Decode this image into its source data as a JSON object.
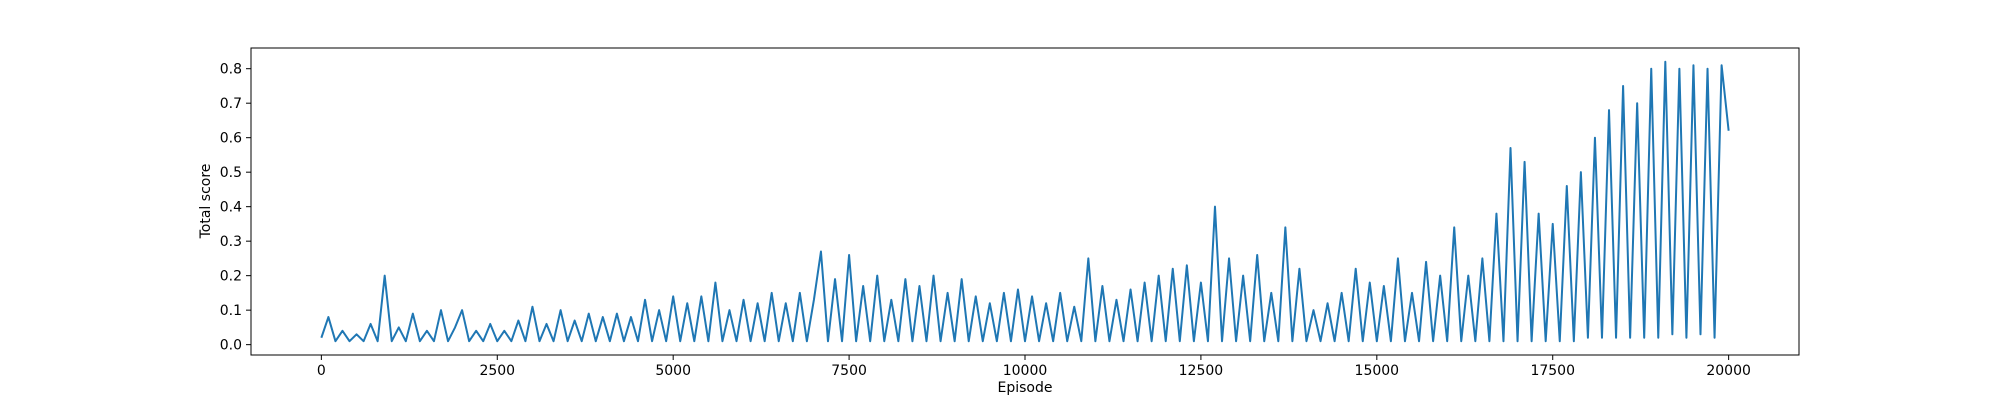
{
  "chart_data": {
    "type": "line",
    "x_label": "Episode",
    "y_label": "Total score",
    "color": "#1f77b4",
    "xlim": [
      -1000,
      21000
    ],
    "ylim": [
      -0.03,
      0.86
    ],
    "xticks": [
      0,
      2500,
      5000,
      7500,
      10000,
      12500,
      15000,
      17500,
      20000
    ],
    "yticks": [
      {
        "value": 0,
        "label": "0.0"
      },
      0.1,
      0.2,
      0.3,
      0.4,
      0.5,
      0.6,
      0.7,
      0.8
    ],
    "x": [
      0,
      100,
      200,
      300,
      400,
      500,
      600,
      700,
      800,
      900,
      1000,
      1100,
      1200,
      1300,
      1400,
      1500,
      1600,
      1700,
      1800,
      1900,
      2000,
      2100,
      2200,
      2300,
      2400,
      2500,
      2600,
      2700,
      2800,
      2900,
      3000,
      3100,
      3200,
      3300,
      3400,
      3500,
      3600,
      3700,
      3800,
      3900,
      4000,
      4100,
      4200,
      4300,
      4400,
      4500,
      4600,
      4700,
      4800,
      4900,
      5000,
      5100,
      5200,
      5300,
      5400,
      5500,
      5600,
      5700,
      5800,
      5900,
      6000,
      6100,
      6200,
      6300,
      6400,
      6500,
      6600,
      6700,
      6800,
      6900,
      7000,
      7100,
      7200,
      7300,
      7400,
      7500,
      7600,
      7700,
      7800,
      7900,
      8000,
      8100,
      8200,
      8300,
      8400,
      8500,
      8600,
      8700,
      8800,
      8900,
      9000,
      9100,
      9200,
      9300,
      9400,
      9500,
      9600,
      9700,
      9800,
      9900,
      10000,
      10100,
      10200,
      10300,
      10400,
      10500,
      10600,
      10700,
      10800,
      10900,
      11000,
      11100,
      11200,
      11300,
      11400,
      11500,
      11600,
      11700,
      11800,
      11900,
      12000,
      12100,
      12200,
      12300,
      12400,
      12500,
      12600,
      12700,
      12800,
      12900,
      13000,
      13100,
      13200,
      13300,
      13400,
      13500,
      13600,
      13700,
      13800,
      13900,
      14000,
      14100,
      14200,
      14300,
      14400,
      14500,
      14600,
      14700,
      14800,
      14900,
      15000,
      15100,
      15200,
      15300,
      15400,
      15500,
      15600,
      15700,
      15800,
      15900,
      16000,
      16100,
      16200,
      16300,
      16400,
      16500,
      16600,
      16700,
      16800,
      16900,
      17000,
      17100,
      17200,
      17300,
      17400,
      17500,
      17600,
      17700,
      17800,
      17900,
      18000,
      18100,
      18200,
      18300,
      18400,
      18500,
      18600,
      18700,
      18800,
      18900,
      19000,
      19100,
      19200,
      19300,
      19400,
      19500,
      19600,
      19700,
      19800,
      19900,
      20000
    ],
    "values": [
      0.02,
      0.08,
      0.01,
      0.04,
      0.01,
      0.03,
      0.01,
      0.06,
      0.01,
      0.2,
      0.01,
      0.05,
      0.01,
      0.09,
      0.01,
      0.04,
      0.01,
      0.1,
      0.01,
      0.05,
      0.1,
      0.01,
      0.04,
      0.01,
      0.06,
      0.01,
      0.04,
      0.01,
      0.07,
      0.01,
      0.11,
      0.01,
      0.06,
      0.01,
      0.1,
      0.01,
      0.07,
      0.01,
      0.09,
      0.01,
      0.08,
      0.01,
      0.09,
      0.01,
      0.08,
      0.01,
      0.13,
      0.01,
      0.1,
      0.01,
      0.14,
      0.01,
      0.12,
      0.01,
      0.14,
      0.01,
      0.18,
      0.01,
      0.1,
      0.01,
      0.13,
      0.01,
      0.12,
      0.01,
      0.15,
      0.01,
      0.12,
      0.01,
      0.15,
      0.01,
      0.13,
      0.27,
      0.01,
      0.19,
      0.01,
      0.26,
      0.01,
      0.17,
      0.01,
      0.2,
      0.01,
      0.13,
      0.01,
      0.19,
      0.01,
      0.17,
      0.01,
      0.2,
      0.01,
      0.15,
      0.01,
      0.19,
      0.01,
      0.14,
      0.01,
      0.12,
      0.01,
      0.15,
      0.01,
      0.16,
      0.01,
      0.14,
      0.01,
      0.12,
      0.01,
      0.15,
      0.01,
      0.11,
      0.01,
      0.25,
      0.01,
      0.17,
      0.01,
      0.13,
      0.01,
      0.16,
      0.01,
      0.18,
      0.01,
      0.2,
      0.01,
      0.22,
      0.01,
      0.23,
      0.01,
      0.18,
      0.01,
      0.4,
      0.01,
      0.25,
      0.01,
      0.2,
      0.01,
      0.26,
      0.01,
      0.15,
      0.01,
      0.34,
      0.01,
      0.22,
      0.01,
      0.1,
      0.01,
      0.12,
      0.01,
      0.15,
      0.01,
      0.22,
      0.01,
      0.18,
      0.01,
      0.17,
      0.01,
      0.25,
      0.01,
      0.15,
      0.01,
      0.24,
      0.01,
      0.2,
      0.01,
      0.34,
      0.01,
      0.2,
      0.01,
      0.25,
      0.01,
      0.38,
      0.01,
      0.57,
      0.01,
      0.53,
      0.01,
      0.38,
      0.01,
      0.35,
      0.01,
      0.46,
      0.01,
      0.5,
      0.02,
      0.6,
      0.02,
      0.68,
      0.02,
      0.75,
      0.02,
      0.7,
      0.02,
      0.8,
      0.02,
      0.82,
      0.03,
      0.8,
      0.02,
      0.81,
      0.03,
      0.8,
      0.02,
      0.81,
      0.62
    ]
  }
}
